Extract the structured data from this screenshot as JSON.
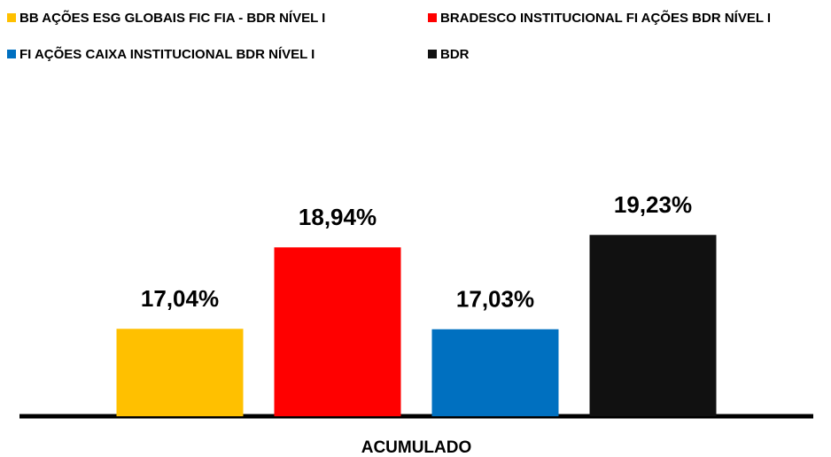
{
  "chart_data": {
    "type": "bar",
    "categories": [
      "ACUMULADO"
    ],
    "series": [
      {
        "name": "BB AÇÕES ESG GLOBAIS FIC FIA - BDR NÍVEL I",
        "color": "#FFC000",
        "values": [
          17.04
        ],
        "value_labels": [
          "17,04%"
        ]
      },
      {
        "name": "BRADESCO INSTITUCIONAL FI AÇÕES BDR NÍVEL I",
        "color": "#FF0000",
        "values": [
          18.94
        ],
        "value_labels": [
          "18,94%"
        ]
      },
      {
        "name": "FI AÇÕES CAIXA INSTITUCIONAL BDR NÍVEL I",
        "color": "#0070C0",
        "values": [
          17.03
        ],
        "value_labels": [
          "17,03%"
        ]
      },
      {
        "name": "BDR",
        "color": "#111111",
        "values": [
          19.23
        ],
        "value_labels": [
          "19,23%"
        ]
      }
    ],
    "ylim": [
      15,
      20
    ],
    "legend": "top"
  }
}
